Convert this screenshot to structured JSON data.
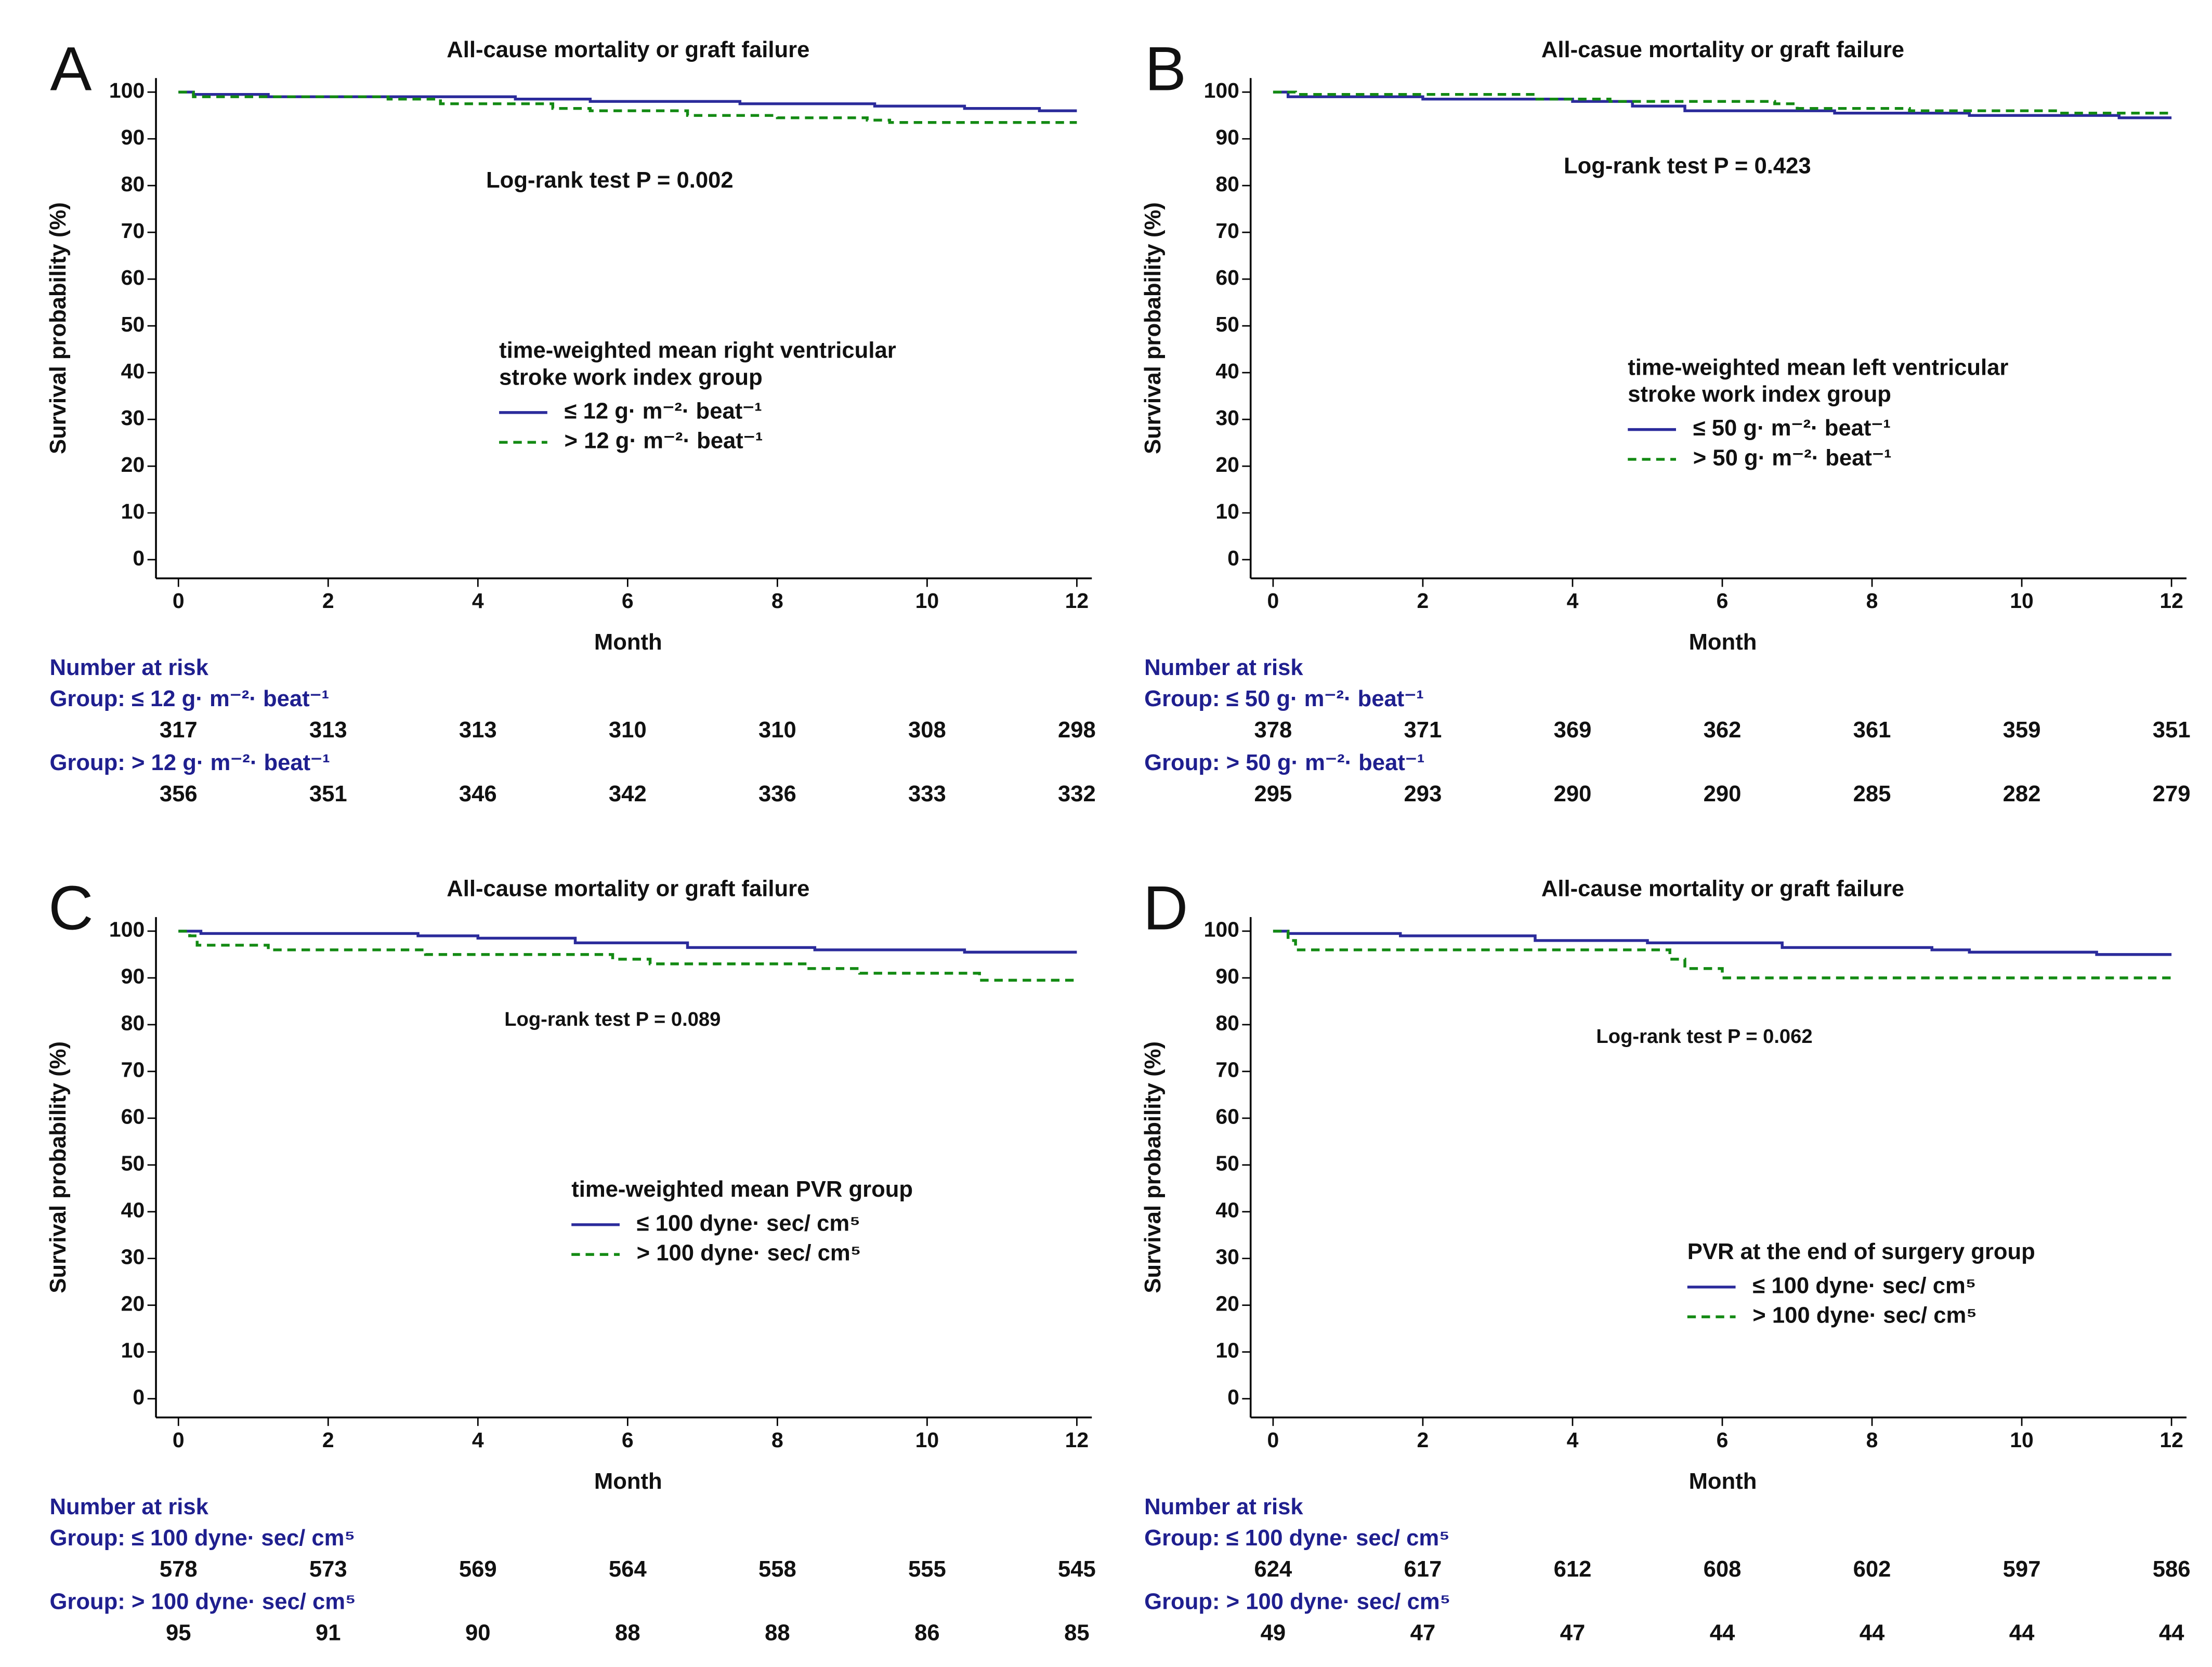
{
  "chart_data": [
    {
      "type": "step",
      "panel": "A",
      "title": "All-cause mortality or graft failure",
      "annotation": "Log-rank test P = 0.002",
      "xlabel": "Month",
      "ylabel": "Survival probability (%)",
      "xlim": [
        -0.3,
        12.2
      ],
      "ylim": [
        -4,
        103
      ],
      "xticks": [
        0,
        2,
        4,
        6,
        8,
        10,
        12
      ],
      "yticks": [
        0,
        10,
        20,
        30,
        40,
        50,
        60,
        70,
        80,
        90,
        100
      ],
      "legend_title": "time-weighted mean right ventricular stroke work index group",
      "series": [
        {
          "name": "≤ 12 g· m⁻²· beat⁻¹",
          "color": "#2b2b9b",
          "x": [
            0,
            0.2,
            1.2,
            4.5,
            5.5,
            7.5,
            9.3,
            10.5,
            11.5,
            12
          ],
          "values": [
            100,
            99.5,
            99,
            98.5,
            98,
            97.5,
            97,
            96.5,
            96,
            96
          ]
        },
        {
          "name": "> 12 g· m⁻²· beat⁻¹",
          "color": "#138a13",
          "x": [
            0,
            0.2,
            2.8,
            3.5,
            5,
            5.5,
            6.8,
            8,
            9.2,
            9.5,
            12
          ],
          "values": [
            100,
            99,
            98.5,
            97.5,
            96.5,
            96,
            95,
            94.5,
            94,
            93.5,
            93.5
          ]
        }
      ],
      "risk_table": {
        "title": "Number at risk",
        "groups": [
          {
            "label": "Group: ≤ 12 g· m⁻²· beat⁻¹",
            "counts": [
              317,
              313,
              313,
              310,
              310,
              308,
              298
            ]
          },
          {
            "label": "Group: > 12 g· m⁻²· beat⁻¹",
            "counts": [
              356,
              351,
              346,
              342,
              336,
              333,
              332
            ]
          }
        ]
      }
    },
    {
      "type": "step",
      "panel": "B",
      "title": "All-casue mortality or graft failure",
      "annotation": "Log-rank test P = 0.423",
      "xlabel": "Month",
      "ylabel": "Survival probability (%)",
      "xlim": [
        -0.3,
        12.2
      ],
      "ylim": [
        -4,
        103
      ],
      "xticks": [
        0,
        2,
        4,
        6,
        8,
        10,
        12
      ],
      "yticks": [
        0,
        10,
        20,
        30,
        40,
        50,
        60,
        70,
        80,
        90,
        100
      ],
      "legend_title": "time-weighted mean left ventricular stroke work index group",
      "series": [
        {
          "name": "≤ 50 g· m⁻²· beat⁻¹",
          "color": "#2b2b9b",
          "x": [
            0,
            0.2,
            2,
            4,
            4.8,
            5.5,
            7.5,
            9.3,
            11.3,
            12
          ],
          "values": [
            100,
            99,
            98.5,
            98,
            97,
            96,
            95.5,
            95,
            94.5,
            94.5
          ]
        },
        {
          "name": "> 50 g· m⁻²· beat⁻¹",
          "color": "#138a13",
          "x": [
            0,
            0.3,
            3.5,
            4.5,
            6.7,
            7,
            8.5,
            10.5,
            12
          ],
          "values": [
            100,
            99.5,
            98.5,
            98,
            97.5,
            96.5,
            96,
            95.5,
            95.5
          ]
        }
      ],
      "risk_table": {
        "title": "Number at risk",
        "groups": [
          {
            "label": "Group: ≤ 50 g·  m⁻²· beat⁻¹",
            "counts": [
              378,
              371,
              369,
              362,
              361,
              359,
              351
            ]
          },
          {
            "label": "Group: > 50 g·  m⁻²· beat⁻¹",
            "counts": [
              295,
              293,
              290,
              290,
              285,
              282,
              279
            ]
          }
        ]
      }
    },
    {
      "type": "step",
      "panel": "C",
      "title": "All-cause mortality or graft failure",
      "annotation": "Log-rank test P = 0.089",
      "xlabel": "Month",
      "ylabel": "Survival probability (%)",
      "xlim": [
        -0.3,
        12.2
      ],
      "ylim": [
        -4,
        103
      ],
      "xticks": [
        0,
        2,
        4,
        6,
        8,
        10,
        12
      ],
      "yticks": [
        0,
        10,
        20,
        30,
        40,
        50,
        60,
        70,
        80,
        90,
        100
      ],
      "legend_title": "time-weighted mean PVR group",
      "series": [
        {
          "name": "≤ 100 dyne· sec/ cm⁵",
          "color": "#2b2b9b",
          "x": [
            0,
            0.3,
            3.2,
            4,
            5.3,
            6.8,
            8.5,
            10.5,
            12
          ],
          "values": [
            100,
            99.5,
            99,
            98.5,
            97.5,
            96.5,
            96,
            95.5,
            95.5
          ]
        },
        {
          "name": "> 100 dyne· sec/ cm⁵",
          "color": "#138a13",
          "x": [
            0,
            0.15,
            0.25,
            1.2,
            3.3,
            5.8,
            6.3,
            8.4,
            9.1,
            10.7,
            12
          ],
          "values": [
            100,
            99,
            97,
            96,
            95,
            94,
            93,
            92,
            91,
            89.5,
            89.5
          ]
        }
      ],
      "risk_table": {
        "title": "Number at risk",
        "groups": [
          {
            "label": "Group: ≤ 100 dyne· sec/ cm⁵",
            "counts": [
              578,
              573,
              569,
              564,
              558,
              555,
              545
            ]
          },
          {
            "label": "Group: > 100 dyne· sec/ cm⁵",
            "counts": [
              95,
              91,
              90,
              88,
              88,
              86,
              85
            ]
          }
        ]
      }
    },
    {
      "type": "step",
      "panel": "D",
      "title": "All-cause mortality or graft failure",
      "annotation": "Log-rank test P = 0.062",
      "xlabel": "Month",
      "ylabel": "Survival probability (%)",
      "xlim": [
        -0.3,
        12.2
      ],
      "ylim": [
        -4,
        103
      ],
      "xticks": [
        0,
        2,
        4,
        6,
        8,
        10,
        12
      ],
      "yticks": [
        0,
        10,
        20,
        30,
        40,
        50,
        60,
        70,
        80,
        90,
        100
      ],
      "legend_title": "PVR at the end of surgery group",
      "series": [
        {
          "name": "≤ 100 dyne· sec/ cm⁵",
          "color": "#2b2b9b",
          "x": [
            0,
            0.2,
            1.7,
            3.5,
            5,
            6.8,
            8.8,
            9.3,
            11,
            12
          ],
          "values": [
            100,
            99.5,
            99,
            98,
            97.5,
            96.5,
            96,
            95.5,
            95,
            95
          ]
        },
        {
          "name": "> 100 dyne· sec/ cm⁵",
          "color": "#138a13",
          "x": [
            0,
            0.2,
            0.3,
            5.3,
            5.5,
            6,
            12
          ],
          "values": [
            100,
            98,
            96,
            94,
            92,
            90,
            90
          ]
        }
      ],
      "risk_table": {
        "title": "Number at risk",
        "groups": [
          {
            "label": "Group: ≤ 100 dyne· sec/ cm⁵",
            "counts": [
              624,
              617,
              612,
              608,
              602,
              597,
              586
            ]
          },
          {
            "label": "Group: > 100 dyne· sec/ cm⁵",
            "counts": [
              49,
              47,
              47,
              44,
              44,
              44,
              44
            ]
          }
        ]
      }
    }
  ]
}
